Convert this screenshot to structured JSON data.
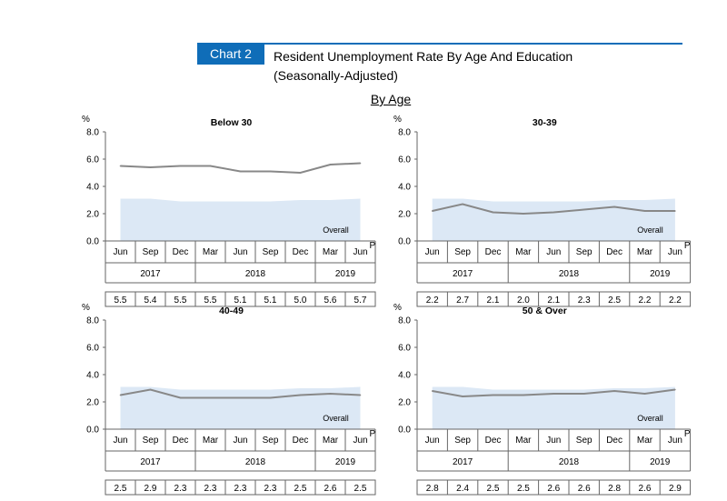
{
  "header": {
    "chart_label": "Chart 2",
    "title_line1": "Resident Unemployment Rate By Age And Education",
    "title_line2": "(Seasonally-Adjusted)",
    "section": "By Age"
  },
  "colors": {
    "accent": "#0f6db8",
    "area": "#dce8f5",
    "line": "#888888",
    "axis": "#666666"
  },
  "chart_data": [
    {
      "type": "line",
      "title": "Below 30",
      "ylabel": "%",
      "ylim": [
        0,
        8
      ],
      "yticks": [
        "8.0",
        "6.0",
        "4.0",
        "2.0",
        "0.0"
      ],
      "categories": [
        "Jun",
        "Sep",
        "Dec",
        "Mar",
        "Jun",
        "Sep",
        "Dec",
        "Mar",
        "Jun"
      ],
      "last_suffix": "P",
      "years": [
        "2017",
        "2018",
        "2019"
      ],
      "series": [
        {
          "name": "Below 30",
          "values": [
            5.5,
            5.4,
            5.5,
            5.5,
            5.1,
            5.1,
            5.0,
            5.6,
            5.7
          ]
        },
        {
          "name": "Overall",
          "values": [
            3.1,
            3.1,
            2.9,
            2.9,
            2.9,
            2.9,
            3.0,
            3.0,
            3.1
          ]
        }
      ],
      "table_values": [
        "5.5",
        "5.4",
        "5.5",
        "5.5",
        "5.1",
        "5.1",
        "5.0",
        "5.6",
        "5.7"
      ],
      "area_label": "Overall"
    },
    {
      "type": "line",
      "title": "30-39",
      "ylabel": "%",
      "ylim": [
        0,
        8
      ],
      "yticks": [
        "8.0",
        "6.0",
        "4.0",
        "2.0",
        "0.0"
      ],
      "categories": [
        "Jun",
        "Sep",
        "Dec",
        "Mar",
        "Jun",
        "Sep",
        "Dec",
        "Mar",
        "Jun"
      ],
      "last_suffix": "P",
      "years": [
        "2017",
        "2018",
        "2019"
      ],
      "series": [
        {
          "name": "30-39",
          "values": [
            2.2,
            2.7,
            2.1,
            2.0,
            2.1,
            2.3,
            2.5,
            2.2,
            2.2
          ]
        },
        {
          "name": "Overall",
          "values": [
            3.1,
            3.1,
            2.9,
            2.9,
            2.9,
            2.9,
            3.0,
            3.0,
            3.1
          ]
        }
      ],
      "table_values": [
        "2.2",
        "2.7",
        "2.1",
        "2.0",
        "2.1",
        "2.3",
        "2.5",
        "2.2",
        "2.2"
      ],
      "area_label": "Overall"
    },
    {
      "type": "line",
      "title": "40-49",
      "ylabel": "%",
      "ylim": [
        0,
        8
      ],
      "yticks": [
        "8.0",
        "6.0",
        "4.0",
        "2.0",
        "0.0"
      ],
      "categories": [
        "Jun",
        "Sep",
        "Dec",
        "Mar",
        "Jun",
        "Sep",
        "Dec",
        "Mar",
        "Jun"
      ],
      "last_suffix": "P",
      "years": [
        "2017",
        "2018",
        "2019"
      ],
      "series": [
        {
          "name": "40-49",
          "values": [
            2.5,
            2.9,
            2.3,
            2.3,
            2.3,
            2.3,
            2.5,
            2.6,
            2.5
          ]
        },
        {
          "name": "Overall",
          "values": [
            3.1,
            3.1,
            2.9,
            2.9,
            2.9,
            2.9,
            3.0,
            3.0,
            3.1
          ]
        }
      ],
      "table_values": [
        "2.5",
        "2.9",
        "2.3",
        "2.3",
        "2.3",
        "2.3",
        "2.5",
        "2.6",
        "2.5"
      ],
      "area_label": "Overall"
    },
    {
      "type": "line",
      "title": "50 & Over",
      "ylabel": "%",
      "ylim": [
        0,
        8
      ],
      "yticks": [
        "8.0",
        "6.0",
        "4.0",
        "2.0",
        "0.0"
      ],
      "categories": [
        "Jun",
        "Sep",
        "Dec",
        "Mar",
        "Jun",
        "Sep",
        "Dec",
        "Mar",
        "Jun"
      ],
      "last_suffix": "P",
      "years": [
        "2017",
        "2018",
        "2019"
      ],
      "series": [
        {
          "name": "50 & Over",
          "values": [
            2.8,
            2.4,
            2.5,
            2.5,
            2.6,
            2.6,
            2.8,
            2.6,
            2.9
          ]
        },
        {
          "name": "Overall",
          "values": [
            3.1,
            3.1,
            2.9,
            2.9,
            2.9,
            2.9,
            3.0,
            3.0,
            3.1
          ]
        }
      ],
      "table_values": [
        "2.8",
        "2.4",
        "2.5",
        "2.5",
        "2.6",
        "2.6",
        "2.8",
        "2.6",
        "2.9"
      ],
      "area_label": "Overall"
    }
  ]
}
